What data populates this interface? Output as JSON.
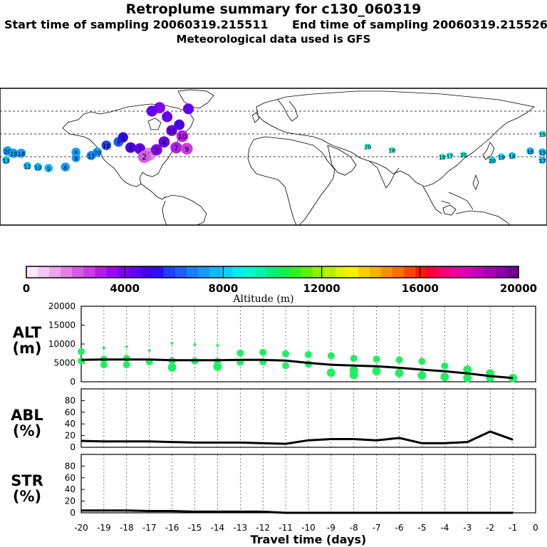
{
  "header": {
    "title": "Retroplume summary for c130_060319",
    "start_label": "Start time of sampling 20060319.215511",
    "end_label": "End time of sampling 20060319.215526",
    "met_label": "Meteorological data used is GFS"
  },
  "colorbar": {
    "ticks": [
      "0",
      "4000",
      "8000",
      "12000",
      "16000",
      "20000"
    ],
    "label": "Altitude (m)",
    "colors": [
      "#fce8fc",
      "#f4c8f4",
      "#eca4ec",
      "#e080e8",
      "#d45ce0",
      "#c83ce4",
      "#b41ce8",
      "#9c08ec",
      "#8000f0",
      "#6400ec",
      "#4800e8",
      "#2c10f0",
      "#2040f8",
      "#1c60f8",
      "#1880f8",
      "#149cf8",
      "#10b8f8",
      "#08d4f8",
      "#00ecf0",
      "#00f8d0",
      "#00f4a8",
      "#00f080",
      "#10f050",
      "#30f020",
      "#60f000",
      "#90f000",
      "#b8f000",
      "#e0f400",
      "#f8f000",
      "#f8d000",
      "#f8b000",
      "#f89000",
      "#f87000",
      "#f84800",
      "#f81800",
      "#f80040",
      "#f00070",
      "#e8009c",
      "#d800b8",
      "#c000c0",
      "#a800b8",
      "#8c00a8",
      "#700090"
    ]
  },
  "chart_data": [
    {
      "type": "scatter",
      "panel": "map",
      "title": "Retroplume summary for c130_060319",
      "points": [
        {
          "lon": -175,
          "lat": 25,
          "label": "20",
          "day": 20,
          "alt": 5000,
          "color": "#149cf8"
        },
        {
          "lon": -171,
          "lat": 23,
          "label": "19",
          "day": 19,
          "alt": 5200,
          "color": "#149cf8"
        },
        {
          "lon": -166,
          "lat": 23,
          "label": "18",
          "day": 18,
          "alt": 5400,
          "color": "#149cf8"
        },
        {
          "lon": -176,
          "lat": 17,
          "label": "13",
          "day": 13,
          "alt": 7000,
          "color": "#10b8f8"
        },
        {
          "lon": -162,
          "lat": 12,
          "label": "11",
          "day": 11,
          "alt": 6800,
          "color": "#10b8f8"
        },
        {
          "lon": -155,
          "lat": 11,
          "label": "10",
          "day": 10,
          "alt": 6500,
          "color": "#10b8f8"
        },
        {
          "lon": -148,
          "lat": 10,
          "label": "9",
          "day": 9,
          "alt": 6200,
          "color": "#10b8f8"
        },
        {
          "lon": -137,
          "lat": 11,
          "label": "8",
          "day": 8,
          "alt": 5500,
          "color": "#149cf8"
        },
        {
          "lon": -130,
          "lat": 24,
          "label": "8",
          "day": 8,
          "alt": 5500,
          "color": "#149cf8"
        },
        {
          "lon": -130,
          "lat": 19,
          "label": "9",
          "day": 9,
          "alt": 5800,
          "color": "#149cf8"
        },
        {
          "lon": -116,
          "lat": 24,
          "label": "20",
          "day": 20,
          "alt": 5200,
          "color": "#149cf8"
        },
        {
          "lon": -120,
          "lat": 21,
          "label": "17",
          "day": 17,
          "alt": 5400,
          "color": "#1880f8"
        },
        {
          "lon": -110,
          "lat": 30,
          "label": "18",
          "day": 18,
          "alt": 4800,
          "color": "#2040f8"
        },
        {
          "lon": -102,
          "lat": 33,
          "label": "6",
          "day": 6,
          "alt": 4500,
          "color": "#1c60f8"
        },
        {
          "lon": -99,
          "lat": 37,
          "label": "5",
          "day": 5,
          "alt": 4300,
          "color": "#2c10f0"
        },
        {
          "lon": -94,
          "lat": 28,
          "label": "4",
          "day": 4,
          "alt": 3800,
          "color": "#4800e8"
        },
        {
          "lon": -88,
          "lat": 27,
          "label": "3",
          "day": 3,
          "alt": 3400,
          "color": "#6400ec"
        },
        {
          "lon": -82,
          "lat": 22,
          "label": "1",
          "day": 1,
          "alt": 1200,
          "color": "#e080e8"
        },
        {
          "lon": -85,
          "lat": 20,
          "label": "2",
          "day": 2,
          "alt": 1800,
          "color": "#d45ce0"
        },
        {
          "lon": -77,
          "lat": 26,
          "label": "3",
          "day": 3,
          "alt": 3000,
          "color": "#8000f0"
        },
        {
          "lon": -72,
          "lat": 33,
          "label": "4",
          "day": 4,
          "alt": 3200,
          "color": "#6400ec"
        },
        {
          "lon": -64,
          "lat": 28,
          "label": "7",
          "day": 7,
          "alt": 2800,
          "color": "#b41ce8"
        },
        {
          "lon": -57,
          "lat": 27,
          "label": "9",
          "day": 9,
          "alt": 2600,
          "color": "#c83ce4"
        },
        {
          "lon": -60,
          "lat": 38,
          "label": "10",
          "day": 10,
          "alt": 2700,
          "color": "#b41ce8"
        },
        {
          "lon": -67,
          "lat": 43,
          "label": "11",
          "day": 11,
          "alt": 3600,
          "color": "#6400ec"
        },
        {
          "lon": -62,
          "lat": 48,
          "label": "",
          "day": 12,
          "alt": 3900,
          "color": "#4800e8"
        },
        {
          "lon": -70,
          "lat": 55,
          "label": "",
          "day": 13,
          "alt": 3800,
          "color": "#6400ec"
        },
        {
          "lon": -75,
          "lat": 63,
          "label": "",
          "day": 14,
          "alt": 3300,
          "color": "#8000f0"
        },
        {
          "lon": -80,
          "lat": 60,
          "label": "",
          "day": 15,
          "alt": 3500,
          "color": "#6400ec"
        },
        {
          "lon": -56,
          "lat": 62,
          "label": "",
          "day": 16,
          "alt": 3700,
          "color": "#6400ec"
        },
        {
          "lon": 62,
          "lat": 29,
          "label": "20",
          "day": 20,
          "alt": 9000,
          "color": "#00f8d0"
        },
        {
          "lon": 78,
          "lat": 26,
          "label": "18",
          "day": 18,
          "alt": 9200,
          "color": "#00f8d0"
        },
        {
          "lon": 111,
          "lat": 20,
          "label": "18",
          "day": 18,
          "alt": 8800,
          "color": "#00f8d0"
        },
        {
          "lon": 116,
          "lat": 21,
          "label": "17",
          "day": 17,
          "alt": 8600,
          "color": "#00ecf0"
        },
        {
          "lon": 125,
          "lat": 22,
          "label": "20",
          "day": 20,
          "alt": 9000,
          "color": "#00f8d0"
        },
        {
          "lon": 144,
          "lat": 17,
          "label": "20",
          "day": 20,
          "alt": 7600,
          "color": "#08d4f8"
        },
        {
          "lon": 150,
          "lat": 20,
          "label": "19",
          "day": 19,
          "alt": 7800,
          "color": "#08d4f8"
        },
        {
          "lon": 157,
          "lat": 21,
          "label": "18",
          "day": 18,
          "alt": 7500,
          "color": "#08d4f8"
        },
        {
          "lon": 169,
          "lat": 25,
          "label": "16",
          "day": 16,
          "alt": 7200,
          "color": "#10b8f8"
        },
        {
          "lon": 177,
          "lat": 24,
          "label": "15",
          "day": 15,
          "alt": 7000,
          "color": "#10b8f8"
        },
        {
          "lon": 177,
          "lat": 17,
          "label": "17",
          "day": 17,
          "alt": 7400,
          "color": "#10b8f8"
        },
        {
          "lon": 177,
          "lat": 40,
          "label": "19",
          "day": 19,
          "alt": 8500,
          "color": "#00ecf0"
        }
      ]
    },
    {
      "type": "line",
      "panel": "ALT",
      "ylabel": "ALT\n(m)",
      "ylim": [
        0,
        20000
      ],
      "yticks": [
        "20000",
        "15000",
        "10000",
        "5000",
        "0"
      ],
      "x": [
        -20,
        -19,
        -18,
        -17,
        -16,
        -15,
        -14,
        -13,
        -12,
        -11,
        -10,
        -9,
        -8,
        -7,
        -6,
        -5,
        -4,
        -3,
        -2,
        -1
      ],
      "values": [
        5800,
        5900,
        5900,
        5900,
        5700,
        5700,
        5700,
        5800,
        5800,
        5600,
        5000,
        4500,
        4300,
        4100,
        3700,
        3200,
        2800,
        2200,
        1500,
        1000
      ],
      "scatter": [
        {
          "x": -20,
          "y": 8000
        },
        {
          "x": -20,
          "y": 5500
        },
        {
          "x": -19,
          "y": 9000
        },
        {
          "x": -19,
          "y": 6000
        },
        {
          "x": -19,
          "y": 4500
        },
        {
          "x": -18,
          "y": 9300
        },
        {
          "x": -18,
          "y": 6200
        },
        {
          "x": -18,
          "y": 4500
        },
        {
          "x": -17,
          "y": 8300
        },
        {
          "x": -17,
          "y": 5300
        },
        {
          "x": -16,
          "y": 10200
        },
        {
          "x": -16,
          "y": 5600
        },
        {
          "x": -16,
          "y": 3800
        },
        {
          "x": -15,
          "y": 9800
        },
        {
          "x": -15,
          "y": 5500
        },
        {
          "x": -14,
          "y": 9600
        },
        {
          "x": -14,
          "y": 5400
        },
        {
          "x": -14,
          "y": 4000
        },
        {
          "x": -13,
          "y": 7600
        },
        {
          "x": -13,
          "y": 5200
        },
        {
          "x": -12,
          "y": 7800
        },
        {
          "x": -12,
          "y": 5300
        },
        {
          "x": -11,
          "y": 7400
        },
        {
          "x": -11,
          "y": 4300
        },
        {
          "x": -10,
          "y": 7200
        },
        {
          "x": -10,
          "y": 4700
        },
        {
          "x": -9,
          "y": 6900
        },
        {
          "x": -9,
          "y": 2400
        },
        {
          "x": -8,
          "y": 6200
        },
        {
          "x": -8,
          "y": 3100
        },
        {
          "x": -8,
          "y": 1800
        },
        {
          "x": -7,
          "y": 6000
        },
        {
          "x": -7,
          "y": 2800
        },
        {
          "x": -6,
          "y": 5800
        },
        {
          "x": -6,
          "y": 2300
        },
        {
          "x": -5,
          "y": 5400
        },
        {
          "x": -5,
          "y": 1700
        },
        {
          "x": -4,
          "y": 4200
        },
        {
          "x": -4,
          "y": 1300
        },
        {
          "x": -3,
          "y": 3200
        },
        {
          "x": -3,
          "y": 1000
        },
        {
          "x": -2,
          "y": 2200
        },
        {
          "x": -2,
          "y": 1100
        },
        {
          "x": -1,
          "y": 1000
        }
      ]
    },
    {
      "type": "line",
      "panel": "ABL",
      "ylabel": "ABL\n(%)",
      "ylim": [
        0,
        100
      ],
      "yticks": [
        "80",
        "60",
        "40",
        "20",
        "0"
      ],
      "x": [
        -20,
        -19,
        -18,
        -17,
        -16,
        -15,
        -14,
        -13,
        -12,
        -11,
        -10,
        -9,
        -8,
        -7,
        -6,
        -5,
        -4,
        -3,
        -2,
        -1
      ],
      "values": [
        11,
        10,
        10,
        10,
        9,
        8,
        8,
        8,
        7,
        6,
        12,
        14,
        14,
        12,
        16,
        7,
        7,
        9,
        27,
        13
      ]
    },
    {
      "type": "line",
      "panel": "STR",
      "ylabel": "STR\n(%)",
      "ylim": [
        0,
        100
      ],
      "yticks": [
        "80",
        "60",
        "40",
        "20",
        "0"
      ],
      "x": [
        -20,
        -19,
        -18,
        -17,
        -16,
        -15,
        -14,
        -13,
        -12,
        -11,
        -10,
        -9,
        -8,
        -7,
        -6,
        -5,
        -4,
        -3,
        -2,
        -1
      ],
      "values": [
        4,
        4,
        4,
        3,
        3,
        2,
        2,
        2,
        2,
        0,
        0,
        0,
        0,
        0,
        0,
        0,
        0,
        0,
        0,
        0
      ],
      "xlabel": "Travel time (days)",
      "xticks": [
        "-20",
        "-19",
        "-18",
        "-17",
        "-16",
        "-15",
        "-14",
        "-13",
        "-12",
        "-11",
        "-10",
        "-9",
        "-8",
        "-7",
        "-6",
        "-5",
        "-4",
        "-3",
        "-2",
        "-1",
        "0"
      ]
    }
  ]
}
